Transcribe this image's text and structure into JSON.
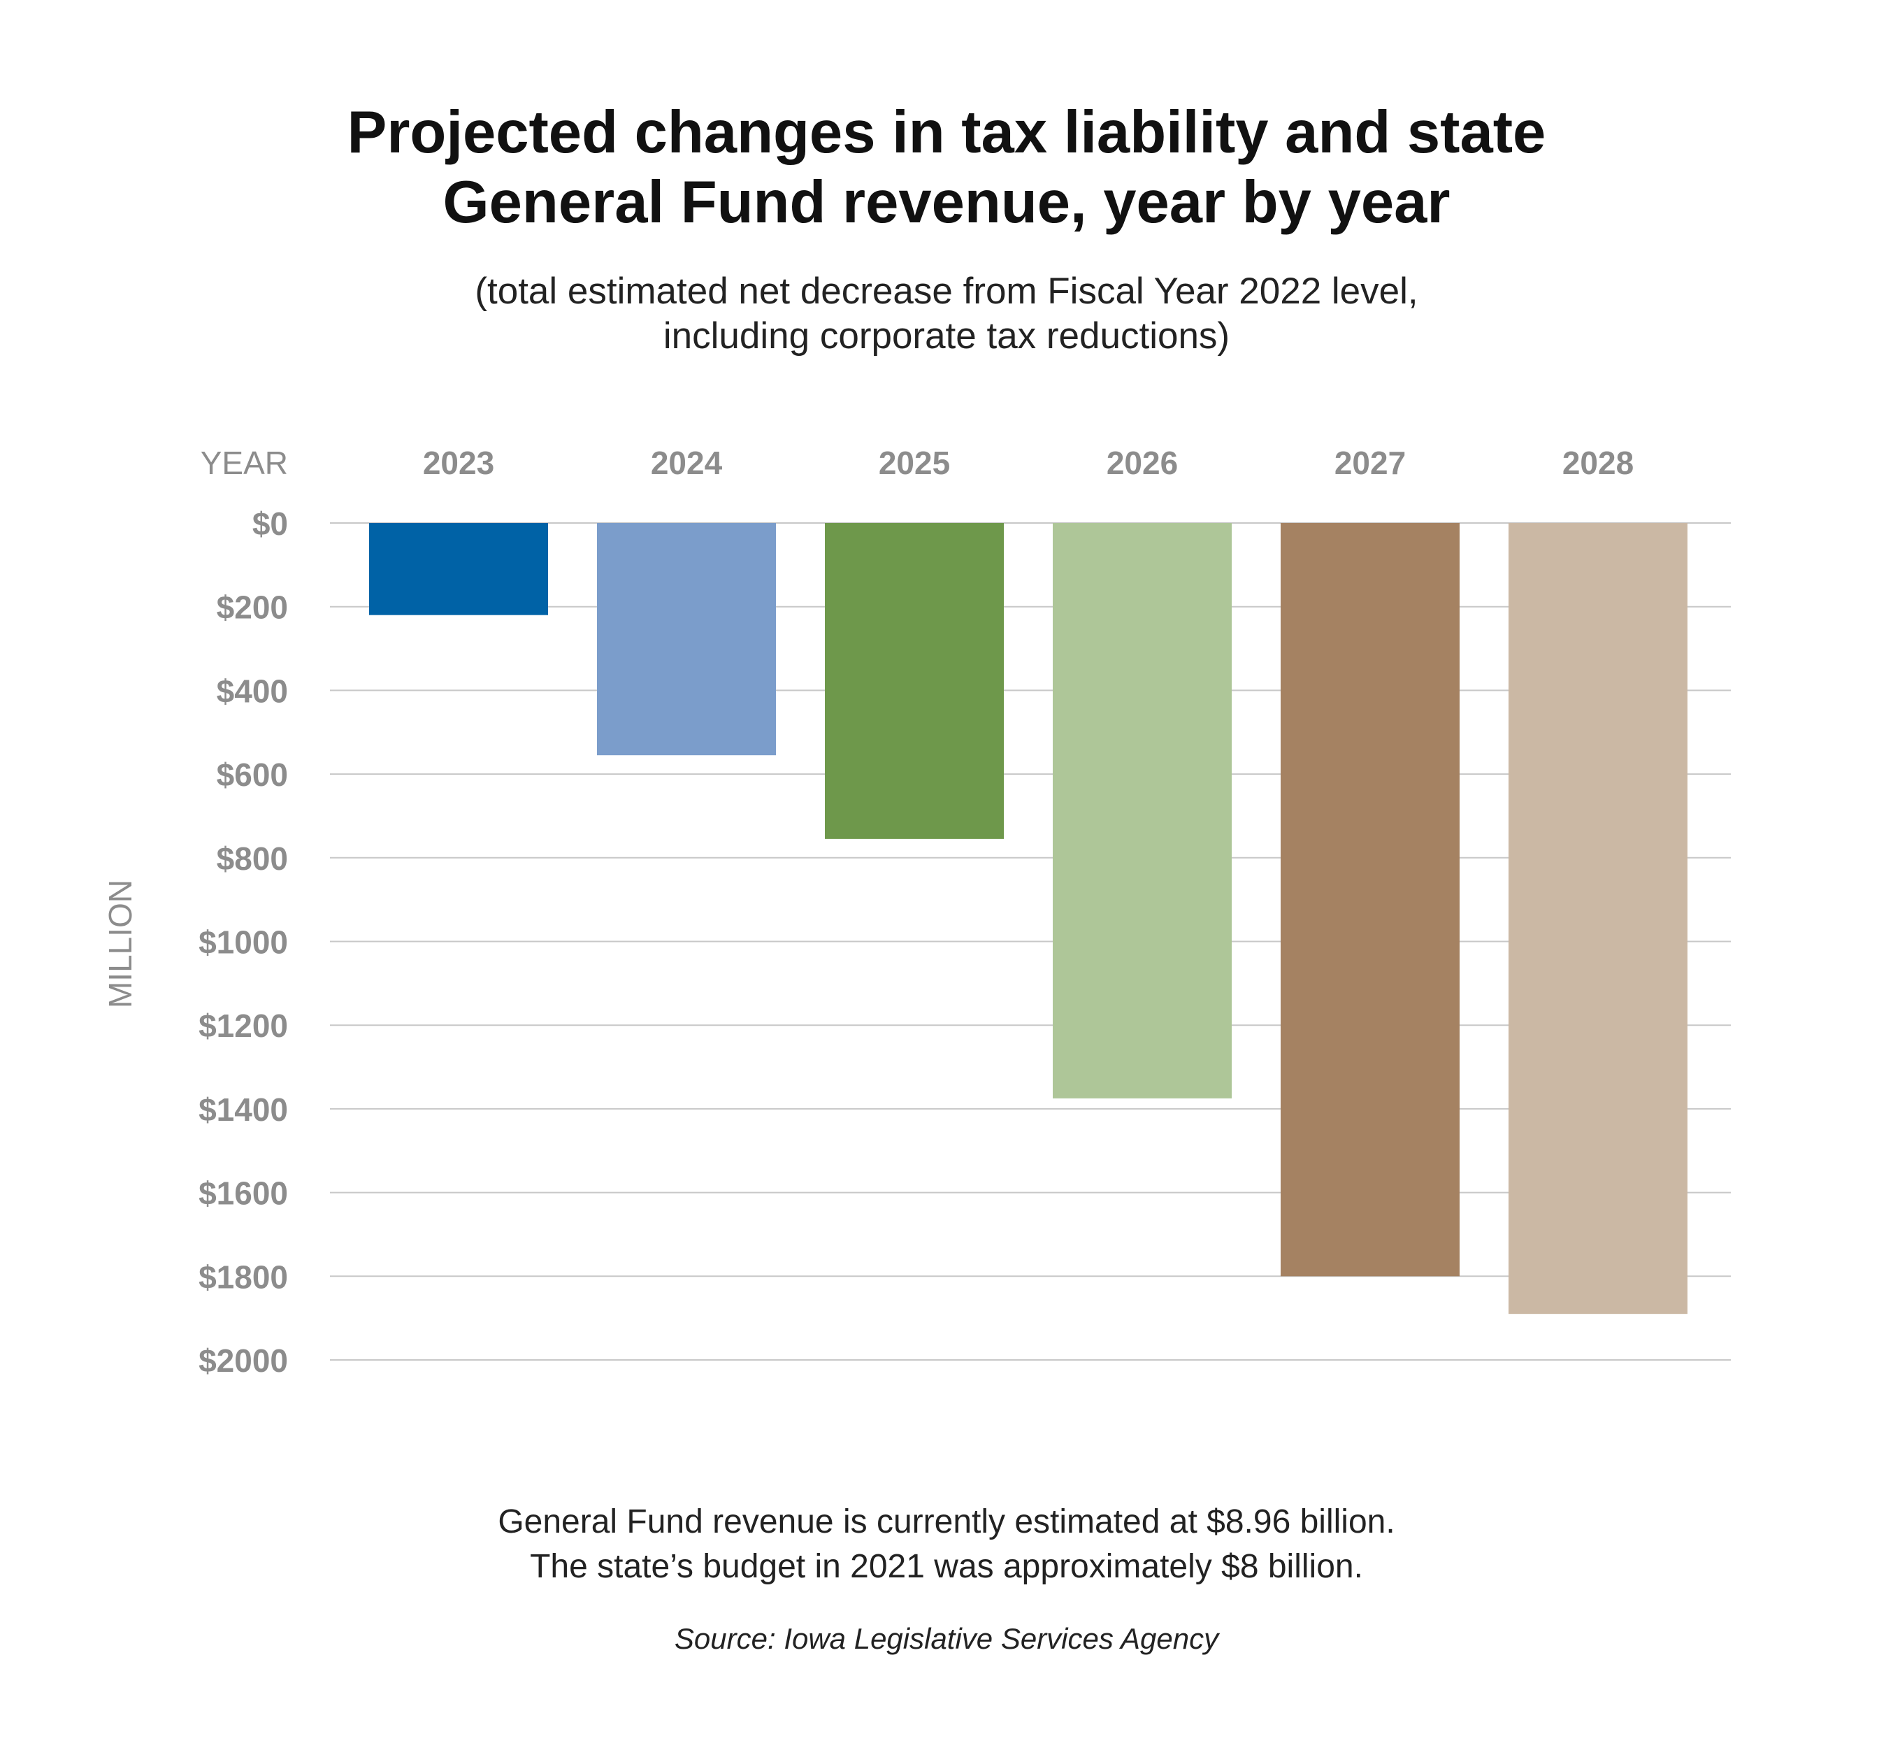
{
  "title_lines": [
    "Projected changes in tax liability and state",
    "General Fund revenue, year by year"
  ],
  "subtitle_lines": [
    "(total estimated net decrease from Fiscal Year 2022 level,",
    "including corporate tax reductions)"
  ],
  "footnote_lines": [
    "General Fund revenue is currently estimated at $8.96 billion.",
    "The state’s budget in 2021 was approximately $8 billion."
  ],
  "source": "Source: Iowa Legislative Services Agency",
  "chart_data": {
    "type": "bar",
    "title": "Projected changes in tax liability and state General Fund revenue, year by year",
    "subtitle": "(total estimated net decrease from Fiscal Year 2022 level, including corporate tax reductions)",
    "xlabel": "YEAR",
    "ylabel": "MILLION",
    "categories": [
      "2023",
      "2024",
      "2025",
      "2026",
      "2027",
      "2028"
    ],
    "values": [
      220,
      555,
      755,
      1375,
      1800,
      1890
    ],
    "colors": [
      "#0062a6",
      "#7b9dcb",
      "#6e984b",
      "#aec698",
      "#a58262",
      "#cbb8a4"
    ],
    "y_ticks": [
      0,
      200,
      400,
      600,
      800,
      1000,
      1200,
      1400,
      1600,
      1800,
      2000
    ],
    "y_tick_labels": [
      "$0",
      "$200",
      "$400",
      "$600",
      "$800",
      "$1000",
      "$1200",
      "$1400",
      "$1600",
      "$1800",
      "$2000"
    ],
    "ylim": [
      0,
      2000
    ],
    "y_inverted": true,
    "grid": true,
    "legend": "none"
  }
}
